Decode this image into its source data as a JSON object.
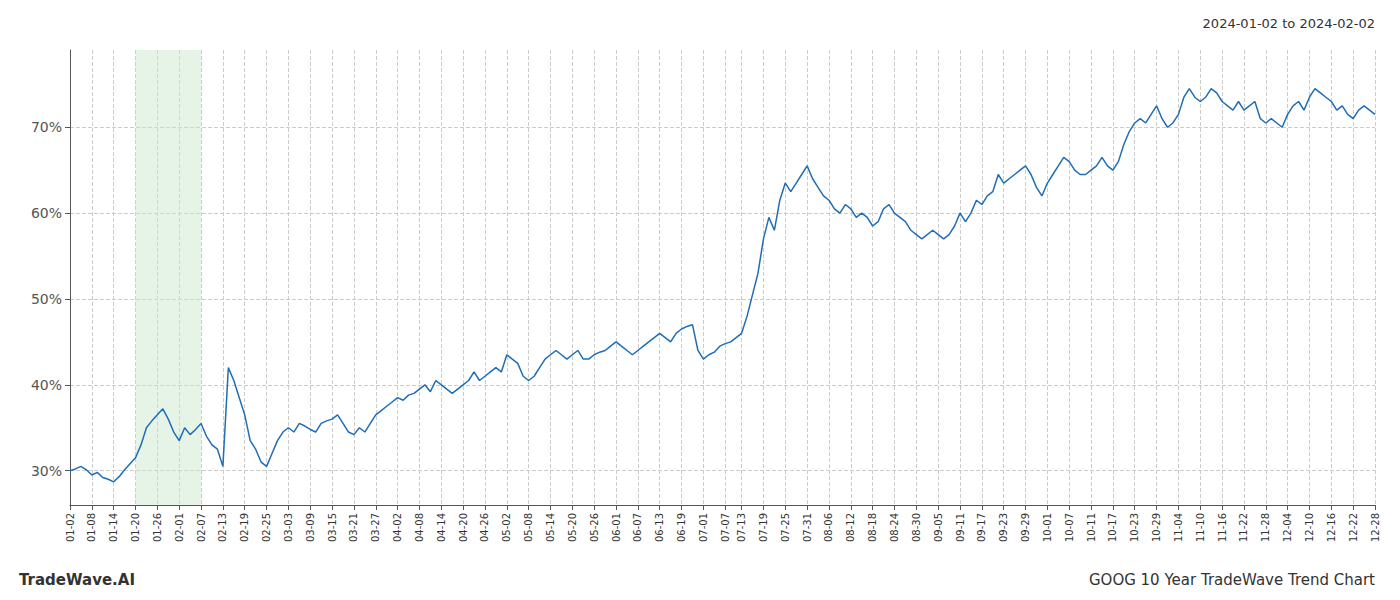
{
  "chart_data": {
    "type": "line",
    "title": "GOOG 10 Year TradeWave Trend Chart",
    "subtitle": "2024-01-02 to 2024-02-02",
    "annotations": [
      "TradeWave.AI"
    ],
    "color": "#1f6db5",
    "grid": true,
    "ylim": [
      26.0,
      79.0
    ],
    "yticks": [
      {
        "value": 30,
        "label": "30%"
      },
      {
        "value": 40,
        "label": "40%"
      },
      {
        "value": 50,
        "label": "50%"
      },
      {
        "value": 60,
        "label": "60%"
      },
      {
        "value": 70,
        "label": "70%"
      }
    ],
    "shaded_span": {
      "start": "01-20",
      "end": "02-07",
      "color": "#c8e6c9"
    },
    "categories": [
      "01-02",
      null,
      null,
      null,
      "01-08",
      null,
      null,
      null,
      "01-14",
      null,
      null,
      null,
      "01-20",
      null,
      null,
      null,
      "01-26",
      null,
      null,
      null,
      "02-01",
      null,
      null,
      null,
      "02-07",
      null,
      null,
      null,
      "02-13",
      null,
      null,
      null,
      "02-19",
      null,
      null,
      null,
      "02-25",
      null,
      null,
      null,
      "03-03",
      null,
      null,
      null,
      "03-09",
      null,
      null,
      null,
      "03-15",
      null,
      null,
      null,
      "03-21",
      null,
      null,
      null,
      "03-27",
      null,
      null,
      null,
      "04-02",
      null,
      null,
      null,
      "04-08",
      null,
      null,
      null,
      "04-14",
      null,
      null,
      null,
      "04-20",
      null,
      null,
      null,
      "04-26",
      null,
      null,
      null,
      "05-02",
      null,
      null,
      null,
      "05-08",
      null,
      null,
      null,
      "05-14",
      null,
      null,
      null,
      "05-20",
      null,
      null,
      null,
      "05-26",
      null,
      null,
      null,
      "06-01",
      null,
      null,
      null,
      "06-07",
      null,
      null,
      null,
      "06-13",
      null,
      null,
      null,
      "06-19",
      null,
      null,
      null,
      "07-01",
      null,
      null,
      null,
      "07-07",
      null,
      null,
      "07-13",
      null,
      null,
      null,
      "07-19",
      null,
      null,
      null,
      "07-25",
      null,
      null,
      null,
      "07-31",
      null,
      null,
      null,
      "08-06",
      null,
      null,
      null,
      "08-12",
      null,
      null,
      null,
      "08-18",
      null,
      null,
      null,
      "08-24",
      null,
      null,
      null,
      "08-30",
      null,
      null,
      null,
      "09-05",
      null,
      null,
      null,
      "09-11",
      null,
      null,
      null,
      "09-17",
      null,
      null,
      null,
      "09-23",
      null,
      null,
      null,
      "09-29",
      null,
      null,
      null,
      "10-01",
      null,
      null,
      null,
      "10-07",
      null,
      null,
      null,
      "10-11",
      null,
      null,
      null,
      "10-17",
      null,
      null,
      null,
      "10-23",
      null,
      null,
      null,
      "10-29",
      null,
      null,
      null,
      "11-04",
      null,
      null,
      null,
      "11-10",
      null,
      null,
      null,
      "11-16",
      null,
      null,
      null,
      "11-22",
      null,
      null,
      null,
      "11-28",
      null,
      null,
      null,
      "12-04",
      null,
      null,
      null,
      "12-10",
      null,
      null,
      null,
      "12-16",
      null,
      null,
      null,
      "12-22",
      null,
      null,
      null,
      "12-28"
    ],
    "values": [
      30.0,
      30.2,
      30.5,
      30.1,
      29.5,
      29.8,
      29.2,
      29.0,
      28.7,
      29.3,
      30.1,
      30.8,
      31.5,
      33.0,
      35.0,
      35.8,
      36.5,
      37.2,
      36.0,
      34.5,
      33.5,
      35.0,
      34.2,
      34.8,
      35.5,
      34.0,
      33.0,
      32.5,
      30.5,
      42.0,
      40.5,
      38.5,
      36.5,
      33.5,
      32.5,
      31.0,
      30.5,
      32.0,
      33.5,
      34.5,
      35.0,
      34.5,
      35.5,
      35.2,
      34.8,
      34.5,
      35.5,
      35.8,
      36.0,
      36.5,
      35.5,
      34.5,
      34.2,
      35.0,
      34.5,
      35.5,
      36.5,
      37.0,
      37.5,
      38.0,
      38.5,
      38.2,
      38.8,
      39.0,
      39.5,
      40.0,
      39.2,
      40.5,
      40.0,
      39.5,
      39.0,
      39.5,
      40.0,
      40.5,
      41.5,
      40.5,
      41.0,
      41.5,
      42.0,
      41.5,
      43.5,
      43.0,
      42.5,
      41.0,
      40.5,
      41.0,
      42.0,
      43.0,
      43.5,
      44.0,
      43.5,
      43.0,
      43.5,
      44.0,
      43.0,
      43.0,
      43.5,
      43.8,
      44.0,
      44.5,
      45.0,
      44.5,
      44.0,
      43.5,
      44.0,
      44.5,
      45.0,
      45.5,
      46.0,
      45.5,
      45.0,
      46.0,
      46.5,
      46.8,
      47.0,
      44.0,
      43.0,
      43.5,
      43.8,
      44.5,
      44.8,
      45.0,
      45.5,
      46.0,
      48.0,
      50.5,
      53.0,
      57.0,
      59.5,
      58.0,
      61.5,
      63.5,
      62.5,
      63.5,
      64.5,
      65.5,
      64.0,
      63.0,
      62.0,
      61.5,
      60.5,
      60.0,
      61.0,
      60.5,
      59.5,
      60.0,
      59.5,
      58.5,
      59.0,
      60.5,
      61.0,
      60.0,
      59.5,
      59.0,
      58.0,
      57.5,
      57.0,
      57.5,
      58.0,
      57.5,
      57.0,
      57.5,
      58.5,
      60.0,
      59.0,
      60.0,
      61.5,
      61.0,
      62.0,
      62.5,
      64.5,
      63.5,
      64.0,
      64.5,
      65.0,
      65.5,
      64.5,
      63.0,
      62.0,
      63.5,
      64.5,
      65.5,
      66.5,
      66.0,
      65.0,
      64.5,
      64.5,
      65.0,
      65.5,
      66.5,
      65.5,
      65.0,
      66.0,
      68.0,
      69.5,
      70.5,
      71.0,
      70.5,
      71.5,
      72.5,
      71.0,
      70.0,
      70.5,
      71.5,
      73.5,
      74.5,
      73.5,
      73.0,
      73.5,
      74.5,
      74.0,
      73.0,
      72.5,
      72.0,
      73.0,
      72.0,
      72.5,
      73.0,
      71.0,
      70.5,
      71.0,
      70.5,
      70.0,
      71.5,
      72.5,
      73.0,
      72.0,
      73.5,
      74.5,
      74.0,
      73.5,
      73.0,
      72.0,
      72.5,
      71.5,
      71.0,
      72.0,
      72.5,
      72.0,
      71.5
    ]
  }
}
